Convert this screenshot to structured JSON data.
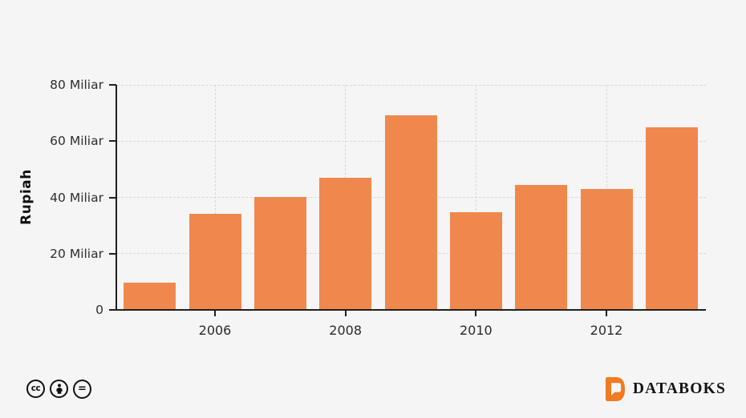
{
  "chart_data": {
    "type": "bar",
    "title": "",
    "xlabel": "",
    "ylabel": "Rupiah",
    "unit": "Miliar",
    "categories": [
      "2005",
      "2006",
      "2007",
      "2008",
      "2009",
      "2010",
      "2011",
      "2012",
      "2013"
    ],
    "values": [
      9.8,
      34.2,
      40.2,
      47,
      69.3,
      34.8,
      44.4,
      42.9,
      65
    ],
    "ylim": [
      0,
      80
    ],
    "yticks": [
      {
        "value": 0,
        "label": "0"
      },
      {
        "value": 20,
        "label": "20 Miliar"
      },
      {
        "value": 40,
        "label": "40 Miliar"
      },
      {
        "value": 60,
        "label": "60 Miliar"
      },
      {
        "value": 80,
        "label": "80 Miliar"
      }
    ],
    "xtick_labels": [
      "2006",
      "2008",
      "2010",
      "2012"
    ],
    "grid": "dashed",
    "legend_position": "none",
    "bar_color": "#F0884D"
  },
  "colors": {
    "background": "#F5F5F5",
    "bar": "#F0884D",
    "axis": "#1F1F1F",
    "gridline": "#D9D9D9",
    "logo_orange": "#EF7B22",
    "logo_text": "#141414"
  },
  "footer": {
    "license_icons": [
      {
        "name": "creative-commons",
        "glyph": "cc"
      },
      {
        "name": "attribution",
        "glyph": "person-silhouette"
      },
      {
        "name": "no-derivatives",
        "glyph": "="
      }
    ],
    "brand": {
      "name": "DATABOKS"
    }
  }
}
